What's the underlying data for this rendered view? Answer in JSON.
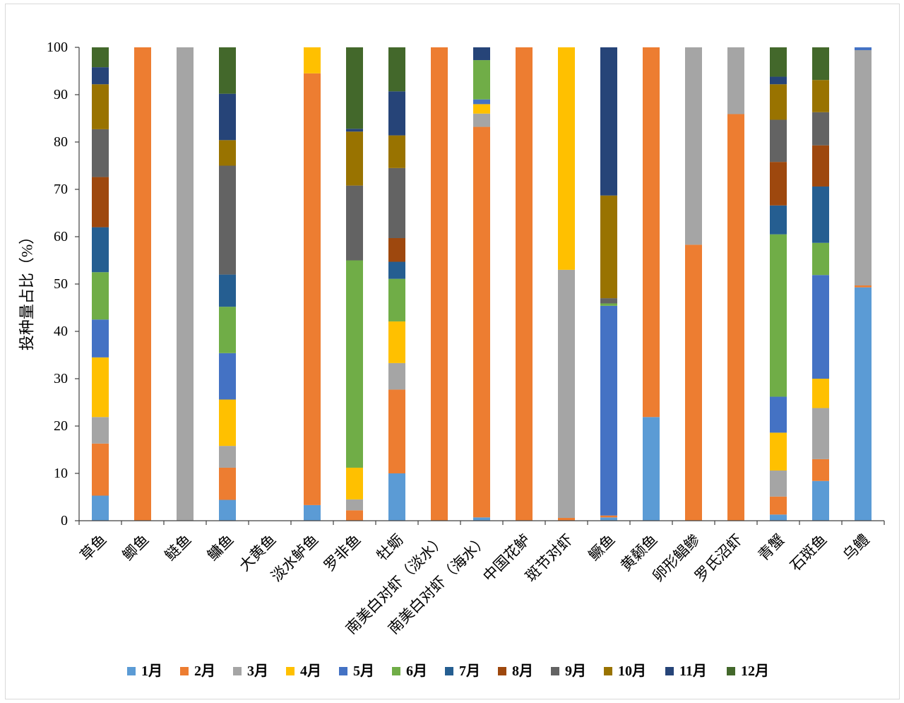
{
  "chart_data": {
    "type": "bar",
    "stacked": true,
    "percent_stacked": true,
    "ylabel": "投种量占比（%）",
    "ylim": [
      0,
      100
    ],
    "yticks": [
      0,
      10,
      20,
      30,
      40,
      50,
      60,
      70,
      80,
      90,
      100
    ],
    "grid": false,
    "legend": "bottom",
    "categories": [
      "草鱼",
      "鲫鱼",
      "鲢鱼",
      "鳙鱼",
      "大黄鱼",
      "淡水鲈鱼",
      "罗非鱼",
      "牡蛎",
      "南美白对虾（淡水）",
      "南美白对虾（海水）",
      "中国花鲈",
      "斑节对虾",
      "鳜鱼",
      "黄颡鱼",
      "卵形鲳鲹",
      "罗氏沼虾",
      "青蟹",
      "石斑鱼",
      "乌鳢"
    ],
    "series": [
      {
        "name": "1月",
        "color": "#5B9BD5",
        "values": [
          5.3,
          0,
          0,
          4.4,
          0,
          3.3,
          0,
          10,
          0,
          0.7,
          0,
          0,
          0.7,
          21.9,
          0,
          0,
          1.3,
          8.4,
          49.3
        ]
      },
      {
        "name": "2月",
        "color": "#ED7D31",
        "values": [
          11,
          100,
          0,
          6.8,
          0,
          91.2,
          2.2,
          17.7,
          100,
          82.5,
          100,
          0.6,
          0.4,
          78.1,
          58.3,
          85.9,
          3.8,
          4.6,
          0.4
        ]
      },
      {
        "name": "3月",
        "color": "#A5A5A5",
        "values": [
          5.6,
          0,
          100,
          4.6,
          0,
          0,
          2.3,
          5.6,
          0,
          2.8,
          0,
          52.4,
          0,
          0,
          41.7,
          14.1,
          5.5,
          10.8,
          49.7
        ]
      },
      {
        "name": "4月",
        "color": "#FFC000",
        "values": [
          12.6,
          0,
          0,
          9.8,
          0,
          5.5,
          6.7,
          8.8,
          0,
          2,
          0,
          47,
          0,
          0,
          0,
          0,
          8,
          6.2,
          0
        ]
      },
      {
        "name": "5月",
        "color": "#4472C4",
        "values": [
          8,
          0,
          0,
          9.8,
          0,
          0,
          0,
          0,
          0,
          1,
          0,
          0,
          44.3,
          0,
          0,
          0,
          7.6,
          21.9,
          0.6
        ]
      },
      {
        "name": "6月",
        "color": "#70AD47",
        "values": [
          10,
          0,
          0,
          9.8,
          0,
          0,
          43.8,
          9,
          0,
          8.3,
          0,
          0,
          0.5,
          0,
          0,
          0,
          34.3,
          6.8,
          0
        ]
      },
      {
        "name": "7月",
        "color": "#255E91",
        "values": [
          9.5,
          0,
          0,
          6.8,
          0,
          0,
          0,
          3.6,
          0,
          0,
          0,
          0,
          0,
          0,
          0,
          0,
          6.1,
          11.9,
          0
        ]
      },
      {
        "name": "8月",
        "color": "#9E480E",
        "values": [
          10.6,
          0,
          0,
          0,
          0,
          0,
          0,
          5,
          0,
          0,
          0,
          0,
          0,
          0,
          0,
          0,
          9.2,
          8.7,
          0
        ]
      },
      {
        "name": "9月",
        "color": "#636363",
        "values": [
          10.1,
          0,
          0,
          23,
          0,
          0,
          15.8,
          14.8,
          0,
          0,
          0,
          0,
          1.1,
          0,
          0,
          0,
          8.9,
          7,
          0
        ]
      },
      {
        "name": "10月",
        "color": "#997300",
        "values": [
          9.5,
          0,
          0,
          5.4,
          0,
          0,
          11.4,
          6.9,
          0,
          0,
          0,
          0,
          21.7,
          0,
          0,
          0,
          7.5,
          6.8,
          0
        ]
      },
      {
        "name": "11月",
        "color": "#264478",
        "values": [
          3.6,
          0,
          0,
          9.8,
          0,
          0,
          0.6,
          9.3,
          0,
          2.7,
          0,
          0,
          31.3,
          0,
          0,
          0,
          1.6,
          0,
          0
        ]
      },
      {
        "name": "12月",
        "color": "#43682B",
        "values": [
          4.2,
          0,
          0,
          9.8,
          0,
          0,
          17.2,
          9.3,
          0,
          0,
          0,
          0,
          0,
          0,
          0,
          0,
          6.2,
          6.9,
          0
        ]
      }
    ]
  }
}
